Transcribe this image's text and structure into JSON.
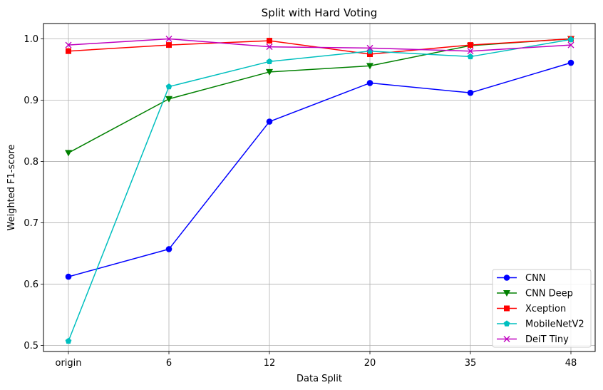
{
  "chart_data": {
    "type": "line",
    "title": "Split with Hard Voting",
    "xlabel": "Data Split",
    "ylabel": "Weighted F1-score",
    "categories": [
      "origin",
      "6",
      "12",
      "20",
      "35",
      "48"
    ],
    "ylim": [
      0.49,
      1.025
    ],
    "yticks": [
      0.5,
      0.6,
      0.7,
      0.8,
      0.9,
      1.0
    ],
    "ytick_labels": [
      "0.5",
      "0.6",
      "0.7",
      "0.8",
      "0.9",
      "1.0"
    ],
    "grid": true,
    "legend_position": "lower-right",
    "series": [
      {
        "name": "CNN",
        "color": "#0000ff",
        "marker": "circle",
        "values": [
          0.612,
          0.657,
          0.865,
          0.928,
          0.912,
          0.961
        ]
      },
      {
        "name": "CNN Deep",
        "color": "#008000",
        "marker": "triangle-down",
        "values": [
          0.814,
          0.902,
          0.946,
          0.956,
          0.989,
          1.0
        ]
      },
      {
        "name": "Xception",
        "color": "#ff0000",
        "marker": "square",
        "values": [
          0.98,
          0.99,
          0.997,
          0.975,
          0.99,
          1.0
        ]
      },
      {
        "name": "MobileNetV2",
        "color": "#00bfbf",
        "marker": "pentagon",
        "values": [
          0.507,
          0.922,
          0.963,
          0.98,
          0.971,
          0.999
        ]
      },
      {
        "name": "DeiT Tiny",
        "color": "#bf00bf",
        "marker": "x",
        "values": [
          0.99,
          1.0,
          0.987,
          0.985,
          0.98,
          0.99
        ]
      }
    ]
  }
}
